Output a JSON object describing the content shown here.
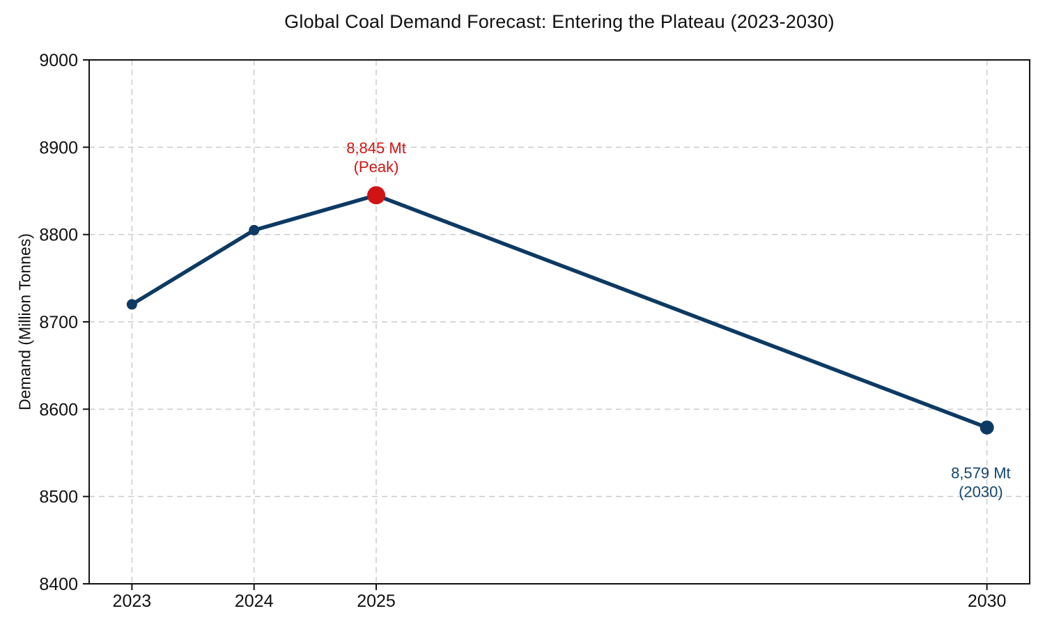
{
  "chart_data": {
    "type": "line",
    "title": "Global Coal Demand Forecast: Entering the Plateau (2023-2030)",
    "xlabel": "",
    "ylabel": "Demand (Million Tonnes)",
    "x": [
      2023,
      2024,
      2025,
      2030
    ],
    "values": [
      8720,
      8805,
      8845,
      8579
    ],
    "xlim": [
      2022.65,
      2030.35
    ],
    "ylim": [
      8400,
      9000
    ],
    "xticks": [
      2023,
      2024,
      2025,
      2030
    ],
    "yticks": [
      8400,
      8500,
      8600,
      8700,
      8800,
      8900,
      9000
    ],
    "grid": true,
    "grid_style": "dashed",
    "legend": false,
    "colors": {
      "line": "#0d3a63",
      "marker": "#0d3a63",
      "peak_marker": "#d01414",
      "peak_text": "#d01414",
      "endpoint_text": "#16476f",
      "grid": "#cbcbcb",
      "axis": "#111111",
      "text": "#111111"
    },
    "markers": [
      {
        "x": 2023,
        "r": 7.5,
        "color": "line"
      },
      {
        "x": 2024,
        "r": 7.5,
        "color": "line"
      },
      {
        "x": 2025,
        "r": 13,
        "color": "peak"
      },
      {
        "x": 2030,
        "r": 10,
        "color": "line"
      }
    ],
    "annotations": [
      {
        "name": "peak-annotation",
        "lines": [
          "8,845 Mt",
          "(Peak)"
        ],
        "x": 2025,
        "y": 8893,
        "color_key": "peak_text"
      },
      {
        "name": "endpoint-annotation",
        "lines": [
          "8,579 Mt",
          "(2030)"
        ],
        "x": 2029.95,
        "y": 8521,
        "color_key": "endpoint_text"
      }
    ]
  }
}
